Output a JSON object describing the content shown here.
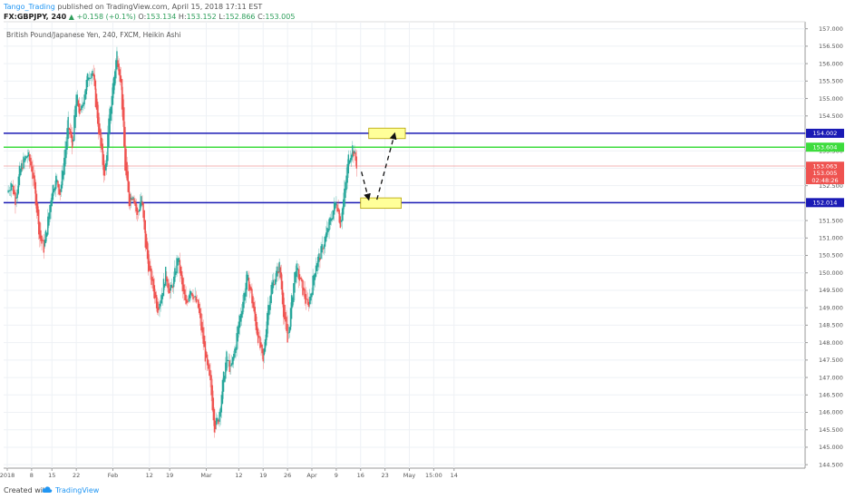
{
  "header": {
    "author": "Tango_Trading",
    "published": "published on TradingView.com, April 15, 2018 17:11 EST",
    "symbol": "FX:GBPJPY, 240",
    "change": "▲ +0.158 (+0.1%)",
    "o_label": "O:",
    "o_value": "153.134",
    "h_label": "H:",
    "h_value": "153.152",
    "l_label": "L:",
    "l_value": "152.866",
    "c_label": "C:",
    "c_value": "153.005"
  },
  "subtitle": "British Pound/Japanese Yen, 240, FXCM, Heikin Ashi",
  "footer": {
    "created_with": "Created with",
    "brand": "TradingView"
  },
  "colors": {
    "bull": "#26a69a",
    "bear": "#ef5350",
    "level_blue": "#1a1ab5",
    "level_green": "#3ddc3d",
    "price_line": "#ef9a9a",
    "zone_fill": "#ffff99",
    "zone_border": "#b3a000",
    "tag_dark": "#ef5350"
  },
  "chart_data": {
    "type": "candlestick",
    "title": "British Pound/Japanese Yen, 240, FXCM, Heikin Ashi",
    "ylim": [
      144.4,
      157.2
    ],
    "xlim": [
      0,
      108
    ],
    "y_ticks": [
      "144.500",
      "145.000",
      "145.500",
      "146.000",
      "146.500",
      "147.000",
      "147.500",
      "148.000",
      "148.500",
      "149.000",
      "149.500",
      "150.000",
      "150.500",
      "151.000",
      "151.500",
      "152.000",
      "152.500",
      "153.000",
      "153.500",
      "154.000",
      "154.500",
      "155.000",
      "155.500",
      "156.000",
      "156.500",
      "157.000"
    ],
    "x_ticks": [
      {
        "label": "2018",
        "day": 0
      },
      {
        "label": "8",
        "day": 6
      },
      {
        "label": "15",
        "day": 11
      },
      {
        "label": "22",
        "day": 17
      },
      {
        "label": "Feb",
        "day": 26
      },
      {
        "label": "12",
        "day": 35
      },
      {
        "label": "19",
        "day": 40
      },
      {
        "label": "Mar",
        "day": 49
      },
      {
        "label": "12",
        "day": 57
      },
      {
        "label": "19",
        "day": 63
      },
      {
        "label": "26",
        "day": 69
      },
      {
        "label": "Apr",
        "day": 75
      },
      {
        "label": "9",
        "day": 81
      },
      {
        "label": "16",
        "day": 87
      },
      {
        "label": "23",
        "day": 93
      },
      {
        "label": "May",
        "day": 99
      },
      {
        "label": "15:00",
        "day": 105
      },
      {
        "label": "14",
        "day": 110
      }
    ],
    "close_path": [
      [
        0,
        152.3
      ],
      [
        1,
        152.6
      ],
      [
        2,
        152.1
      ],
      [
        3,
        152.9
      ],
      [
        4,
        153.2
      ],
      [
        5,
        153.4
      ],
      [
        6,
        153.0
      ],
      [
        7,
        152.1
      ],
      [
        8,
        151.0
      ],
      [
        9,
        150.7
      ],
      [
        10,
        151.5
      ],
      [
        11,
        152.4
      ],
      [
        12,
        152.7
      ],
      [
        13,
        152.3
      ],
      [
        14,
        153.3
      ],
      [
        15,
        154.3
      ],
      [
        16,
        153.6
      ],
      [
        17,
        155.1
      ],
      [
        18,
        154.5
      ],
      [
        19,
        155.2
      ],
      [
        20,
        155.7
      ],
      [
        21,
        155.8
      ],
      [
        22,
        154.6
      ],
      [
        23,
        153.6
      ],
      [
        24,
        152.7
      ],
      [
        25,
        154.3
      ],
      [
        26,
        155.4
      ],
      [
        27,
        156.3
      ],
      [
        28,
        155.4
      ],
      [
        29,
        153.0
      ],
      [
        30,
        152.0
      ],
      [
        31,
        152.3
      ],
      [
        32,
        151.6
      ],
      [
        33,
        152.2
      ],
      [
        34,
        150.8
      ],
      [
        35,
        150.0
      ],
      [
        36,
        149.5
      ],
      [
        37,
        149.0
      ],
      [
        38,
        149.4
      ],
      [
        39,
        150.0
      ],
      [
        40,
        149.4
      ],
      [
        41,
        149.8
      ],
      [
        42,
        150.5
      ],
      [
        43,
        149.6
      ],
      [
        44,
        149.0
      ],
      [
        45,
        149.6
      ],
      [
        46,
        149.3
      ],
      [
        47,
        149.0
      ],
      [
        48,
        148.2
      ],
      [
        49,
        147.4
      ],
      [
        50,
        146.8
      ],
      [
        51,
        145.6
      ],
      [
        52,
        145.8
      ],
      [
        53,
        146.8
      ],
      [
        54,
        147.6
      ],
      [
        55,
        147.2
      ],
      [
        56,
        147.8
      ],
      [
        57,
        148.6
      ],
      [
        58,
        149.2
      ],
      [
        59,
        149.9
      ],
      [
        60,
        149.4
      ],
      [
        61,
        148.6
      ],
      [
        62,
        148.0
      ],
      [
        63,
        147.4
      ],
      [
        64,
        148.9
      ],
      [
        65,
        149.6
      ],
      [
        66,
        149.9
      ],
      [
        67,
        150.2
      ],
      [
        68,
        148.9
      ],
      [
        69,
        148.0
      ],
      [
        70,
        149.2
      ],
      [
        71,
        150.2
      ],
      [
        72,
        149.8
      ],
      [
        73,
        149.4
      ],
      [
        74,
        149.0
      ],
      [
        75,
        149.6
      ],
      [
        76,
        150.3
      ],
      [
        77,
        150.5
      ],
      [
        78,
        150.9
      ],
      [
        79,
        151.3
      ],
      [
        80,
        151.7
      ],
      [
        81,
        152.1
      ],
      [
        82,
        151.4
      ],
      [
        83,
        152.3
      ],
      [
        84,
        153.3
      ],
      [
        85,
        153.6
      ],
      [
        86,
        153.1
      ]
    ],
    "horizontal_levels": [
      {
        "value": 154.002,
        "label": "154.002",
        "color": "#1a1ab5",
        "width": 1.5
      },
      {
        "value": 153.604,
        "label": "153.604",
        "color": "#3ddc3d",
        "width": 1.5
      },
      {
        "value": 153.063,
        "label": "153.063",
        "color": "#ef9a9a",
        "width": 0.8
      },
      {
        "value": 152.014,
        "label": "152.014",
        "color": "#1a1ab5",
        "width": 1.5
      }
    ],
    "price_tags": [
      {
        "value": 153.063,
        "label": "153.063"
      },
      {
        "value": 152.86,
        "label": "153.005"
      },
      {
        "value": 152.66,
        "label": "02:48:26"
      }
    ],
    "zones": [
      {
        "day_start": 89,
        "day_end": 98,
        "y_low": 153.85,
        "y_high": 154.15
      },
      {
        "day_start": 87,
        "day_end": 97,
        "y_low": 151.85,
        "y_high": 152.15
      }
    ],
    "arrows": [
      {
        "from": [
          87.2,
          152.9
        ],
        "to": [
          89,
          152.1
        ]
      },
      {
        "from": [
          91,
          152.1
        ],
        "to": [
          95.4,
          154.0
        ]
      }
    ]
  }
}
